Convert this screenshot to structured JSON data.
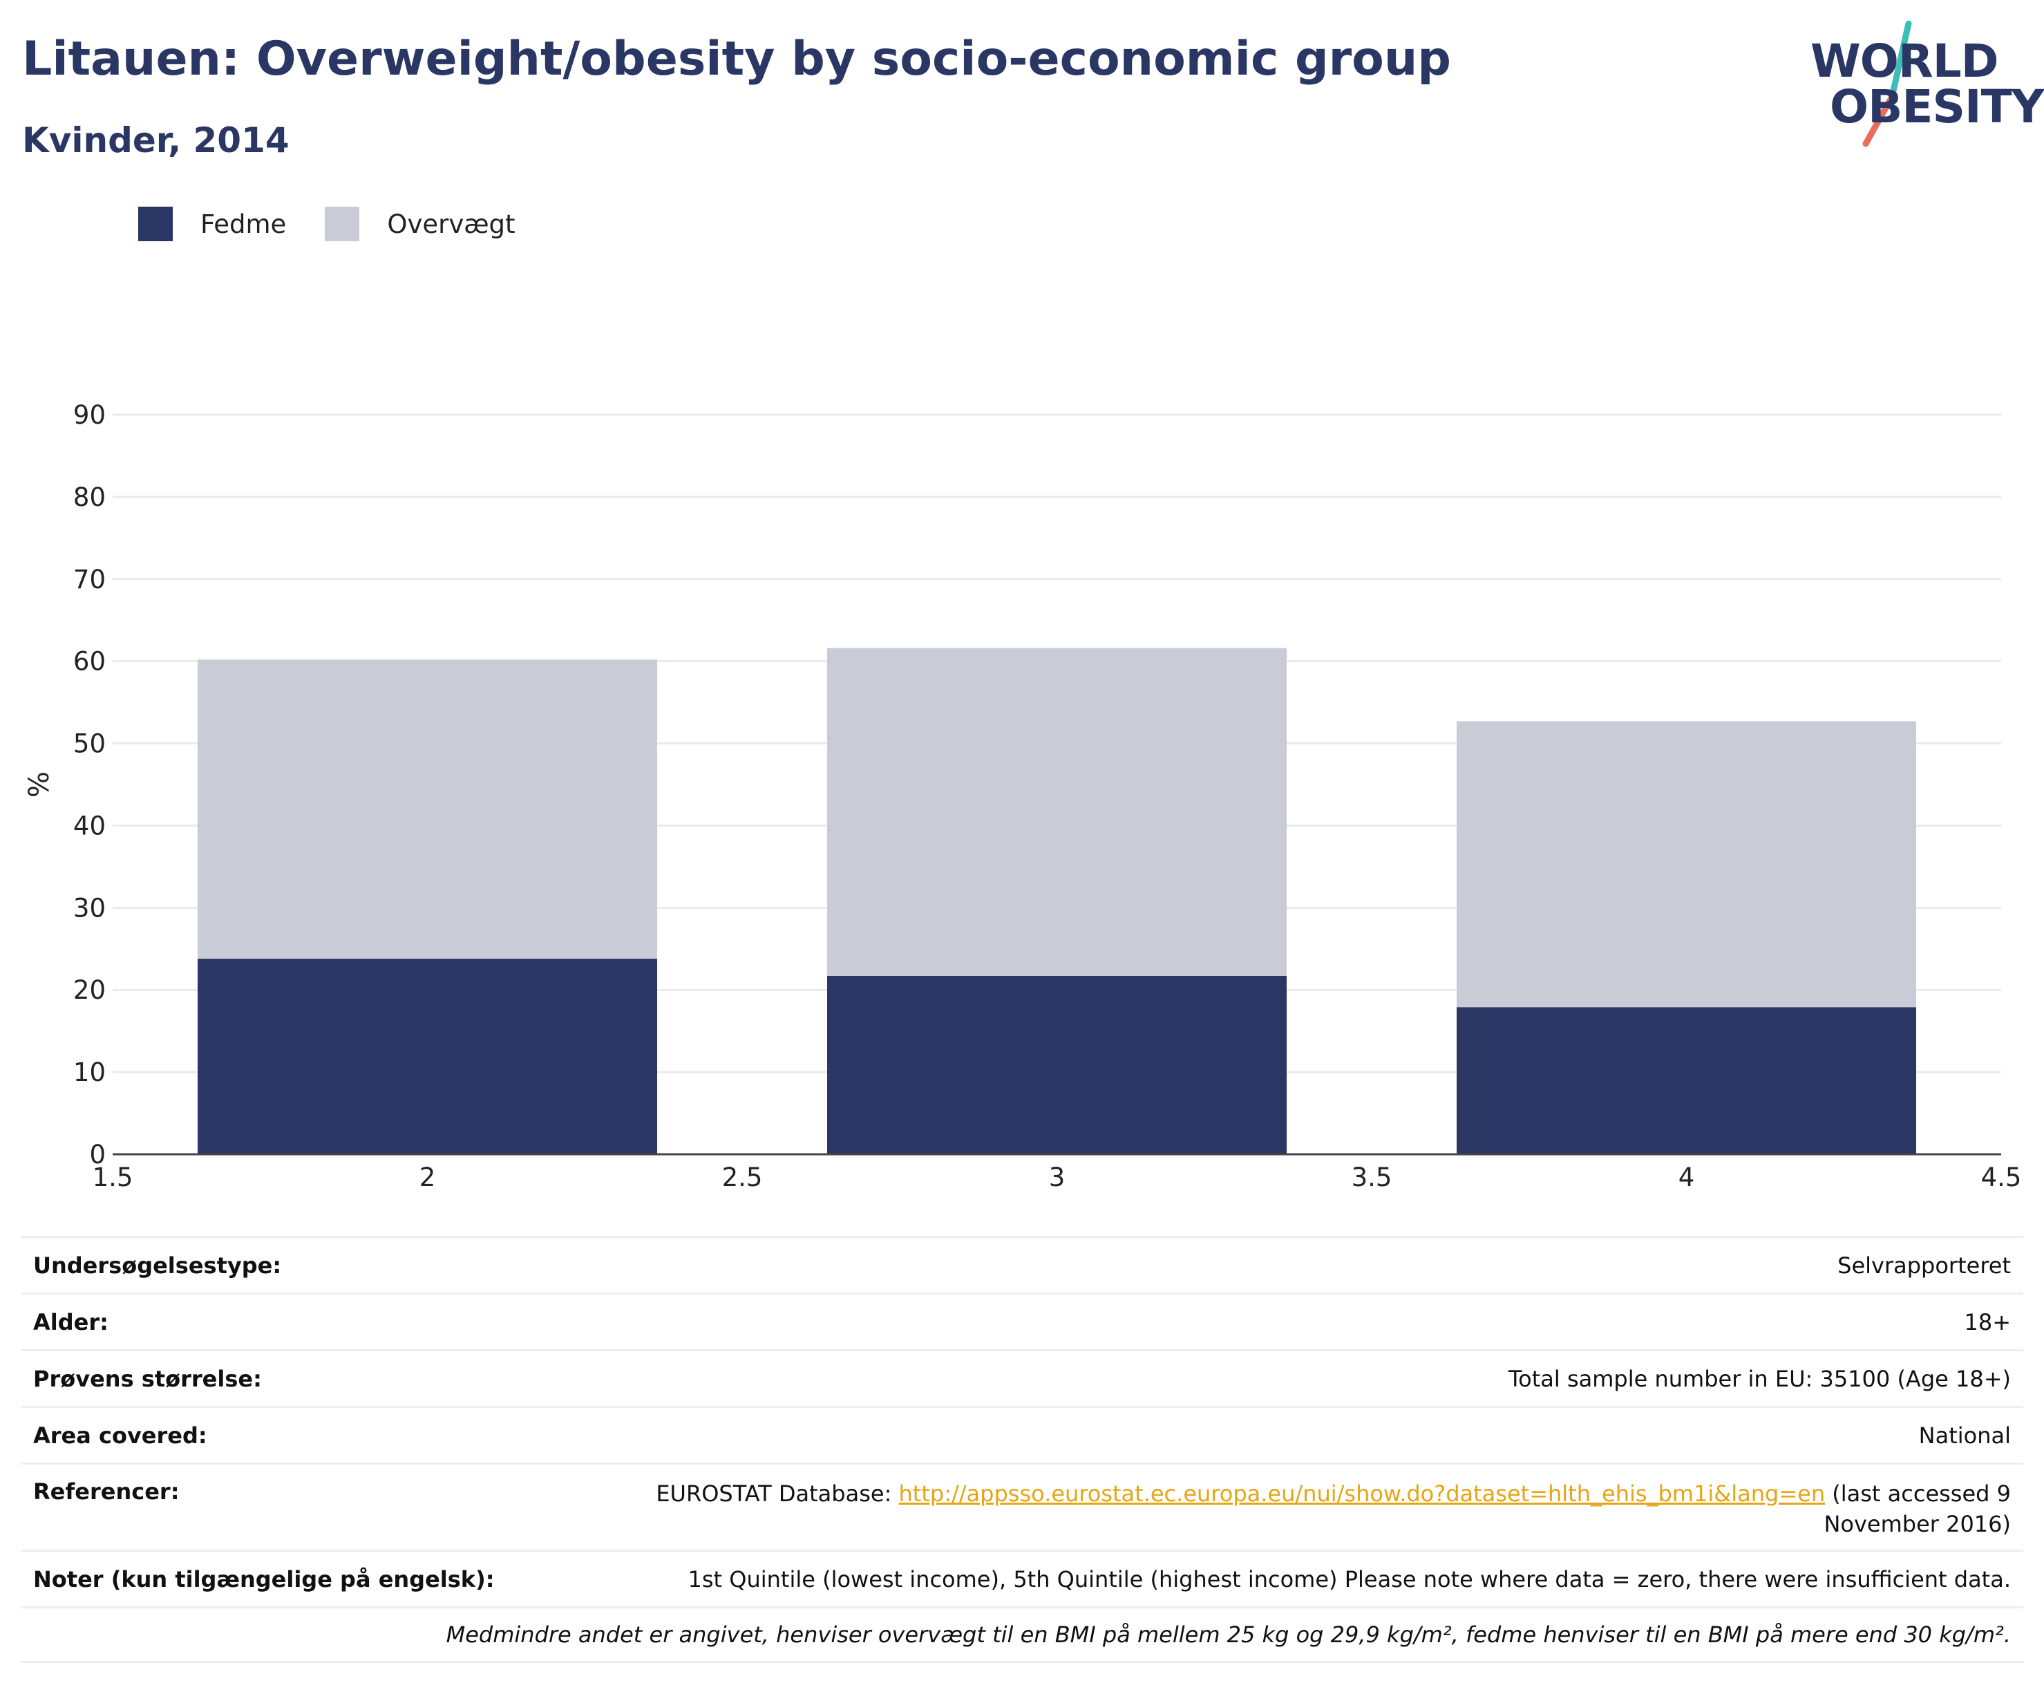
{
  "title": "Litauen: Overweight/obesity by socio-economic group",
  "subtitle": "Kvinder, 2014",
  "logo": {
    "line1": "WORLD",
    "line2": "OBESITY"
  },
  "colors": {
    "fedme": "#2a3663",
    "overvaegt": "#c9ccd7",
    "text": "#2a3663",
    "link": "#e6a514",
    "accent1": "#3bbdb9",
    "accent2": "#e86d5b"
  },
  "legend": [
    {
      "label": "Fedme",
      "color": "#2a3663"
    },
    {
      "label": "Overvægt",
      "color": "#c9ccd7"
    }
  ],
  "chart_data": {
    "type": "bar",
    "stacked": true,
    "x": [
      2,
      3,
      4
    ],
    "series": [
      {
        "name": "Fedme",
        "values": [
          23.8,
          21.7,
          17.9
        ]
      },
      {
        "name": "Overvægt",
        "values": [
          36.4,
          39.9,
          34.8
        ]
      }
    ],
    "ylabel": "%",
    "xlim": [
      1.5,
      4.5
    ],
    "ylim": [
      0,
      90
    ],
    "xticks": [
      "1.5",
      "2",
      "2.5",
      "3",
      "3.5",
      "4",
      "4.5"
    ],
    "yticks": [
      "0",
      "10",
      "20",
      "30",
      "40",
      "50",
      "60",
      "70",
      "80",
      "90"
    ],
    "grid": true,
    "legend_position": "top-left"
  },
  "info": {
    "rows": [
      {
        "label": "Undersøgelsestype:",
        "value": "Selvrapporteret"
      },
      {
        "label": "Alder:",
        "value": "18+"
      },
      {
        "label": "Prøvens størrelse:",
        "value": "Total sample number in EU: 35100 (Age 18+)"
      },
      {
        "label": "Area covered:",
        "value": "National"
      }
    ],
    "references": {
      "label": "Referencer:",
      "prefix": "EUROSTAT Database: ",
      "link": "http://appsso.eurostat.ec.europa.eu/nui/show.do?dataset=hlth_ehis_bm1i&lang=en",
      "suffix": " (last accessed 9 November 2016)"
    },
    "notes": {
      "label": "Noter (kun tilgængelige på engelsk):",
      "value": "1st Quintile (lowest income), 5th Quintile (highest income) Please note where data = zero, there were insufficient data."
    },
    "footnote": "Medmindre andet er angivet, henviser overvægt til en BMI på mellem 25 kg og 29,9 kg/m², fedme henviser til en BMI på mere end 30 kg/m²."
  }
}
